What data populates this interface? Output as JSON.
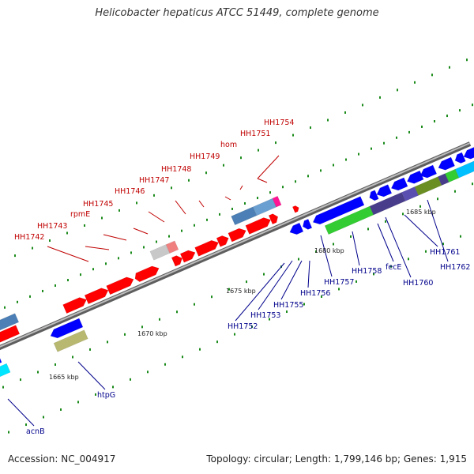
{
  "title": "Helicobacter hepaticus ATCC 51449, complete genome",
  "accession": "Accession: NC_004917",
  "topology": "Topology: circular; Length: 1,799,146 bp; Genes: 1,915",
  "colors": {
    "upper_label": "#c00000",
    "lower_label": "#00008b",
    "backbone": "#8c8c8c",
    "tick_mark": "#1a8a1a"
  },
  "ticks": [
    "1665 kbp",
    "1670 kbp",
    "1675 kbp",
    "1680 kbp",
    "1685 kbp"
  ],
  "upper_genes": [
    "HH1742",
    "HH1743",
    "rpmE",
    "HH1745",
    "HH1746",
    "HH1747",
    "HH1748",
    "HH1749",
    "hom",
    "HH1751",
    "HH1754"
  ],
  "lower_genes": [
    "acnB",
    "htpG",
    "HH1752",
    "HH1753",
    "HH1755",
    "HH1756",
    "HH1757",
    "HH1758",
    "fecE",
    "HH1760",
    "HH1761",
    "HH1762"
  ]
}
